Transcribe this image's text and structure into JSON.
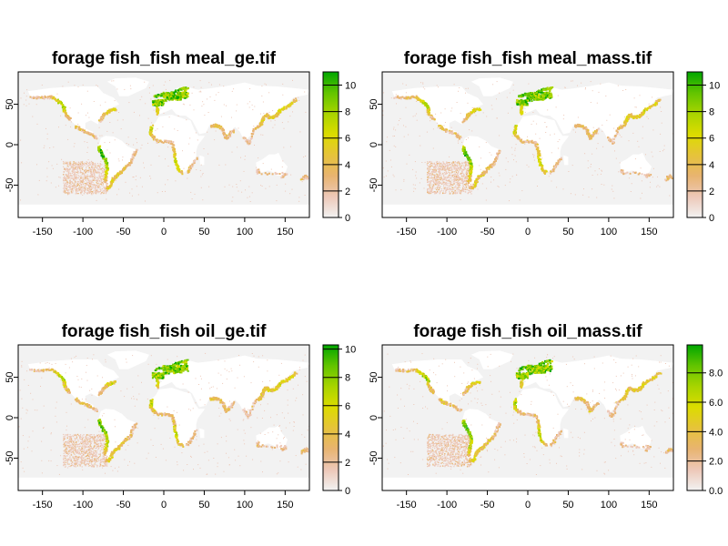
{
  "chart_data": [
    {
      "type": "heatmap",
      "title": "forage fish_fish meal_ge.tif",
      "xlim": [
        -180,
        180
      ],
      "ylim": [
        -90,
        90
      ],
      "x_ticks": [
        "-150",
        "-100",
        "-50",
        "0",
        "50",
        "100",
        "150"
      ],
      "y_ticks": [
        "50",
        "0",
        "-50"
      ],
      "legend_ticks": [
        "0",
        "2",
        "4",
        "6",
        "8",
        "10"
      ],
      "legend_range": [
        0,
        11
      ]
    },
    {
      "type": "heatmap",
      "title": "forage fish_fish meal_mass.tif",
      "xlim": [
        -180,
        180
      ],
      "ylim": [
        -90,
        90
      ],
      "x_ticks": [
        "-150",
        "-100",
        "-50",
        "0",
        "50",
        "100",
        "150"
      ],
      "y_ticks": [
        "50",
        "0",
        "-50"
      ],
      "legend_ticks": [
        "0",
        "2",
        "4",
        "6",
        "8",
        "10"
      ],
      "legend_range": [
        0,
        11
      ]
    },
    {
      "type": "heatmap",
      "title": "forage fish_fish oil_ge.tif",
      "xlim": [
        -180,
        180
      ],
      "ylim": [
        -90,
        90
      ],
      "x_ticks": [
        "-150",
        "-100",
        "-50",
        "0",
        "50",
        "100",
        "150"
      ],
      "y_ticks": [
        "50",
        "0",
        "-50"
      ],
      "legend_ticks": [
        "0",
        "2",
        "4",
        "6",
        "8",
        "10"
      ],
      "legend_range": [
        0,
        10.3
      ]
    },
    {
      "type": "heatmap",
      "title": "forage fish_fish oil_mass.tif",
      "xlim": [
        -180,
        180
      ],
      "ylim": [
        -90,
        90
      ],
      "x_ticks": [
        "-150",
        "-100",
        "-50",
        "0",
        "50",
        "100",
        "150"
      ],
      "y_ticks": [
        "50",
        "0",
        "-50"
      ],
      "legend_ticks": [
        "0.0",
        "2.0",
        "4.0",
        "6.0",
        "8.0"
      ],
      "legend_range": [
        0,
        9.9
      ]
    }
  ],
  "colors": {
    "ocean": "#f2f2f2",
    "land": "#ffffff",
    "scale": [
      "#f2f2f2",
      "#edc8b8",
      "#e8b470",
      "#e6c33a",
      "#dcdc00",
      "#a8d400",
      "#62c400",
      "#00a600"
    ]
  }
}
